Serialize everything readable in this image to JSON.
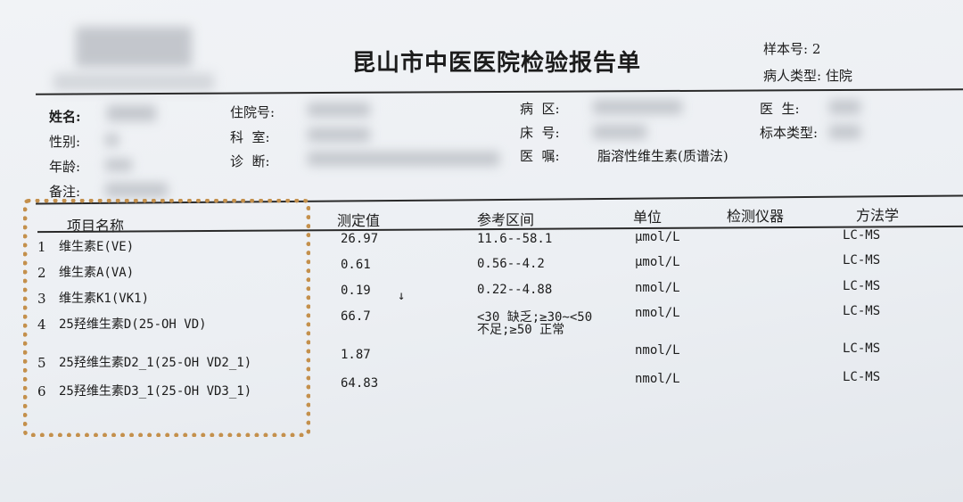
{
  "report": {
    "title": "昆山市中医医院检验报告单",
    "sample_no_label": "样本号:",
    "sample_no": "2",
    "patient_type_label": "病人类型:",
    "patient_type": "住院"
  },
  "info": {
    "name_label": "姓名:",
    "sex_label": "性别:",
    "age_label": "年龄:",
    "note_label": "备注:",
    "admission_no_label": "住院号:",
    "department_label": "科  室:",
    "diagnosis_label": "诊  断:",
    "ward_label": "病  区:",
    "bed_label": "床  号:",
    "order_label": "医  嘱:",
    "order_value": "脂溶性维生素(质谱法)",
    "doctor_label": "医  生:",
    "specimen_type_label": "标本类型:"
  },
  "table": {
    "headers": [
      "项目名称",
      "测定值",
      "参考区间",
      "单位",
      "检测仪器",
      "方法学"
    ],
    "rows": [
      {
        "no": "1",
        "name": "维生素E(VE)",
        "value": "26.97",
        "flag": "",
        "ref": "11.6--58.1",
        "ref2": "",
        "unit": "μmol/L",
        "method": "LC-MS"
      },
      {
        "no": "2",
        "name": "维生素A(VA)",
        "value": "0.61",
        "flag": "",
        "ref": "0.56--4.2",
        "ref2": "",
        "unit": "μmol/L",
        "method": "LC-MS"
      },
      {
        "no": "3",
        "name": "维生素K1(VK1)",
        "value": "0.19",
        "flag": "↓",
        "ref": "0.22--4.88",
        "ref2": "",
        "unit": "nmol/L",
        "method": "LC-MS"
      },
      {
        "no": "4",
        "name": "25羟维生素D(25-OH VD)",
        "value": "66.7",
        "flag": "",
        "ref": "<30 缺乏;≥30~<50",
        "ref2": "不足;≥50 正常",
        "unit": "nmol/L",
        "method": "LC-MS"
      },
      {
        "no": "5",
        "name": "25羟维生素D2_1(25-OH VD2_1)",
        "value": "1.87",
        "flag": "",
        "ref": "",
        "ref2": "",
        "unit": "nmol/L",
        "method": "LC-MS"
      },
      {
        "no": "6",
        "name": "25羟维生素D3_1(25-OH VD3_1)",
        "value": "64.83",
        "flag": "",
        "ref": "",
        "ref2": "",
        "unit": "nmol/L",
        "method": "LC-MS"
      }
    ]
  },
  "colors": {
    "highlight_border": "#c4904c"
  }
}
